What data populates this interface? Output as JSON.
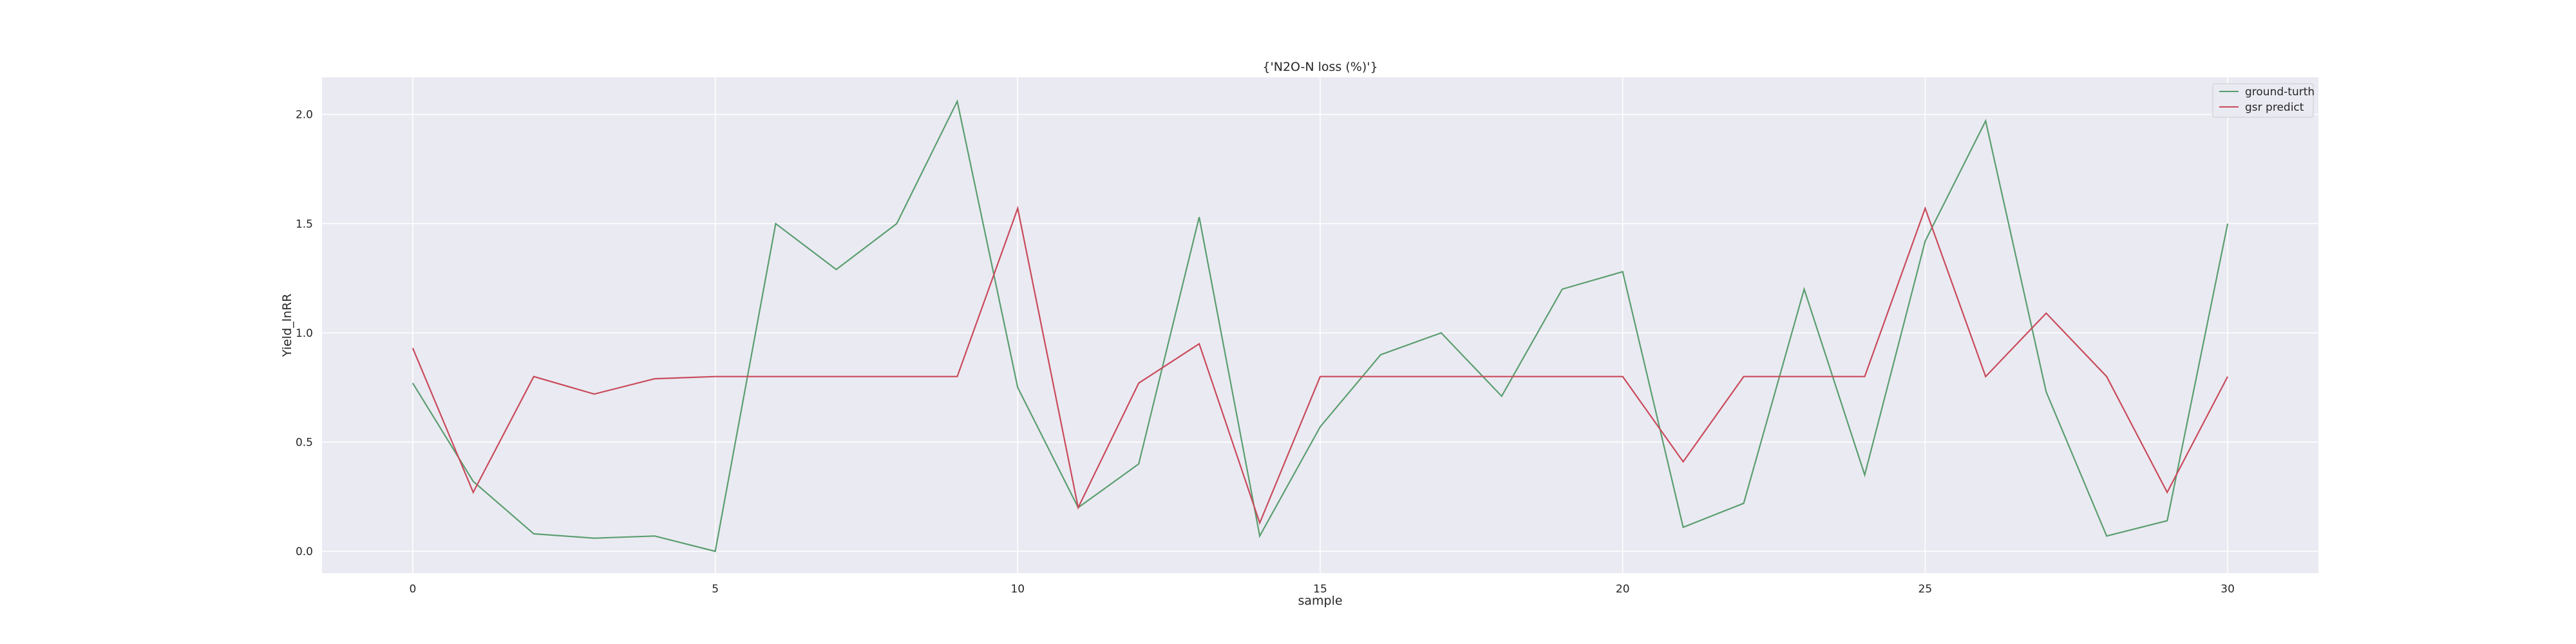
{
  "chart_data": {
    "type": "line",
    "title": "{'N2O-N loss (%)'}",
    "xlabel": "sample",
    "ylabel": "Yield_lnRR",
    "xlim": [
      -1.5,
      31.5
    ],
    "ylim": [
      -0.1,
      2.17
    ],
    "x_ticks": [
      0,
      5,
      10,
      15,
      20,
      25,
      30
    ],
    "y_ticks": [
      0.0,
      0.5,
      1.0,
      1.5,
      2.0
    ],
    "y_tick_labels": [
      "0.0",
      "0.5",
      "1.0",
      "1.5",
      "2.0"
    ],
    "grid": true,
    "legend_position": "top-right",
    "x": [
      0,
      1,
      2,
      3,
      4,
      5,
      6,
      7,
      8,
      9,
      10,
      11,
      12,
      13,
      14,
      15,
      16,
      17,
      18,
      19,
      20,
      21,
      22,
      23,
      24,
      25,
      26,
      27,
      28,
      29,
      30
    ],
    "series": [
      {
        "name": "ground-turth",
        "color": "#5a9e6f",
        "values": [
          0.77,
          0.32,
          0.08,
          0.06,
          0.07,
          0.0,
          1.5,
          1.29,
          1.5,
          2.06,
          0.75,
          0.2,
          0.4,
          1.53,
          0.07,
          0.57,
          0.9,
          1.0,
          0.71,
          1.2,
          1.28,
          0.11,
          0.22,
          1.2,
          0.35,
          1.42,
          1.97,
          0.73,
          0.07,
          0.14,
          1.5
        ]
      },
      {
        "name": "gsr predict",
        "color": "#c94a5a",
        "values": [
          0.93,
          0.27,
          0.8,
          0.72,
          0.79,
          0.8,
          0.8,
          0.8,
          0.8,
          0.8,
          1.57,
          0.2,
          0.77,
          0.95,
          0.13,
          0.8,
          0.8,
          0.8,
          0.8,
          0.8,
          0.8,
          0.41,
          0.8,
          0.8,
          0.8,
          1.57,
          0.8,
          1.09,
          0.8,
          0.27,
          0.8
        ]
      }
    ]
  }
}
